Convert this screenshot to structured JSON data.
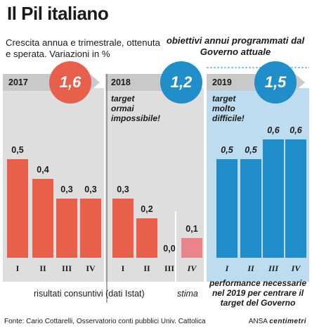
{
  "title": "Il Pil italiano",
  "subtitle": "Crescita annua e trimestrale, ottenuta e sperata. Variazioni in %",
  "subtitle_right": "obiettivi annui programmati dal Governo attuale",
  "colors": {
    "consuntivo": "#e8604c",
    "stima": "#e8848a",
    "obiettivo": "#1f8ec9",
    "panel_bg": "#dedede",
    "panel_bg_2019": "#bedcef",
    "ribbon": "#c9c9c9"
  },
  "footer": {
    "consuntivi": "risultati consuntivi (dati Istat)",
    "stima": "stima",
    "performance": "performance necessarie nel 2019 per centrare il target del Governo",
    "source": "Fonte: Cario Cottarelli, Osservatorio conti pubblici Univ. Cattolica",
    "credit_prefix": "ANSA",
    "credit_brand": "centimetri"
  },
  "chart_data": {
    "type": "bar",
    "groups": [
      {
        "year": "2017",
        "annual_growth": "1,6",
        "note": "",
        "bars": [
          {
            "quarter": "I",
            "value": 0.5,
            "label": "0,5",
            "kind": "consuntivo"
          },
          {
            "quarter": "II",
            "value": 0.4,
            "label": "0,4",
            "kind": "consuntivo"
          },
          {
            "quarter": "III",
            "value": 0.3,
            "label": "0,3",
            "kind": "consuntivo"
          },
          {
            "quarter": "IV",
            "value": 0.3,
            "label": "0,3",
            "kind": "consuntivo"
          }
        ]
      },
      {
        "year": "2018",
        "annual_growth": "1,2",
        "note": "target ormai impossibile!",
        "bars": [
          {
            "quarter": "I",
            "value": 0.3,
            "label": "0,3",
            "kind": "consuntivo"
          },
          {
            "quarter": "II",
            "value": 0.2,
            "label": "0,2",
            "kind": "consuntivo"
          },
          {
            "quarter": "III",
            "value": 0.0,
            "label": "0,0",
            "kind": "consuntivo"
          },
          {
            "quarter": "IV",
            "value": 0.1,
            "label": "0,1",
            "kind": "stima"
          }
        ]
      },
      {
        "year": "2019",
        "annual_growth": "1,5",
        "note": "target molto difficile!",
        "bars": [
          {
            "quarter": "I",
            "value": 0.5,
            "label": "0,5",
            "kind": "obiettivo"
          },
          {
            "quarter": "II",
            "value": 0.5,
            "label": "0,5",
            "kind": "obiettivo"
          },
          {
            "quarter": "III",
            "value": 0.6,
            "label": "0,6",
            "kind": "obiettivo"
          },
          {
            "quarter": "IV",
            "value": 0.6,
            "label": "0,6",
            "kind": "obiettivo"
          }
        ]
      }
    ]
  }
}
